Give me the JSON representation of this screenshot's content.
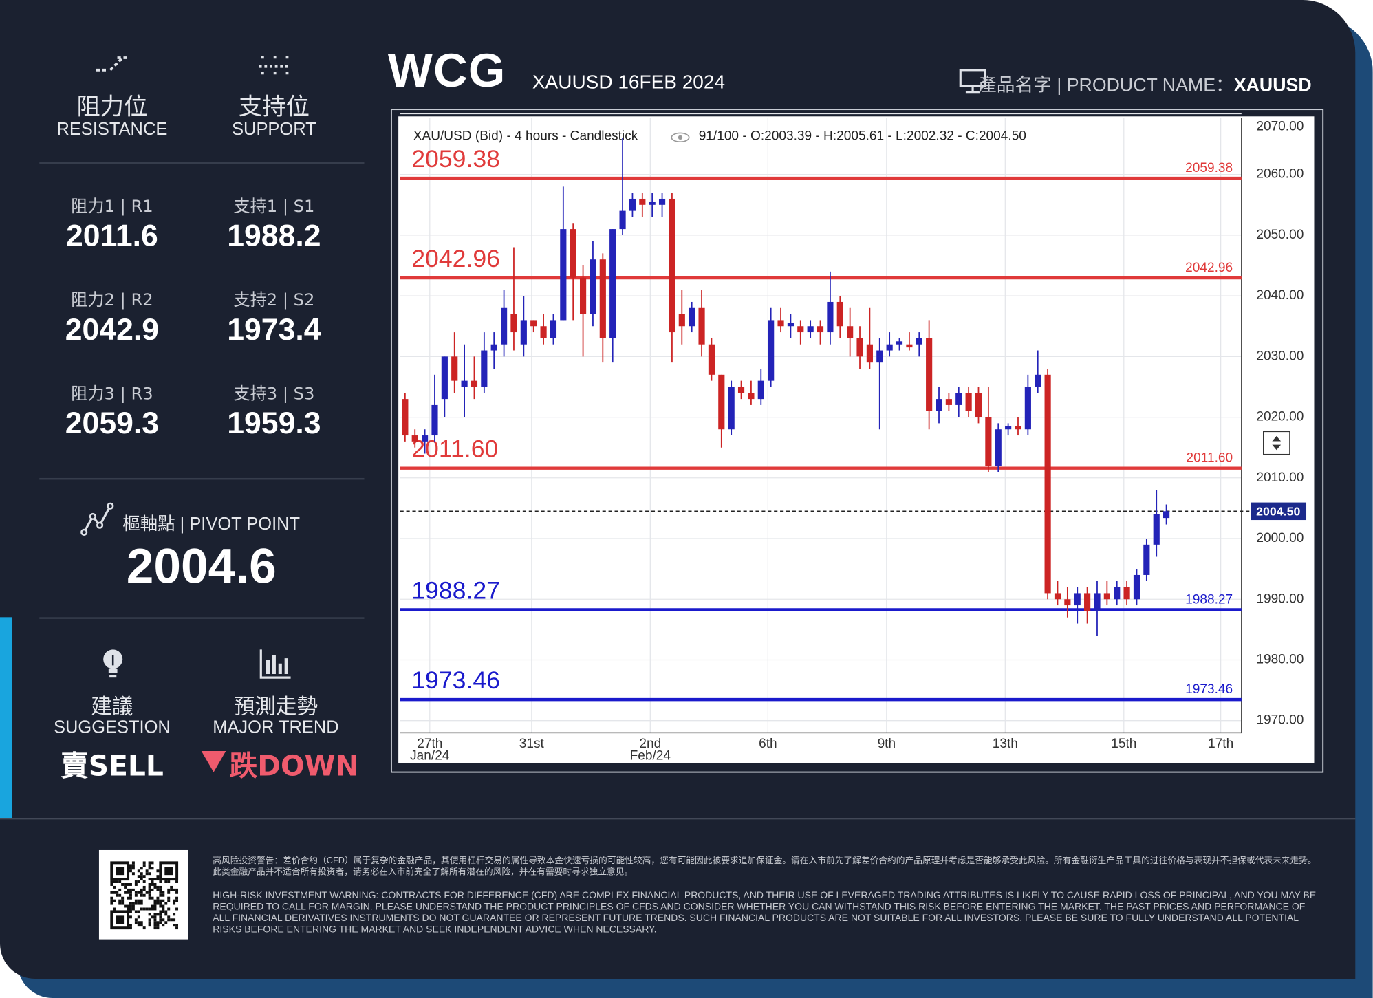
{
  "header": {
    "logo": "WCG",
    "product_date": "XAUUSD 16FEB 2024",
    "product_label": "產品名字 | PRODUCT NAME：",
    "product": "XAUUSD"
  },
  "resistance": {
    "title": "阻力位",
    "subtitle": "RESISTANCE",
    "levels": [
      {
        "label": "阻力1 | R1",
        "value": 2011.6
      },
      {
        "label": "阻力2 | R2",
        "value": 2042.9
      },
      {
        "label": "阻力3 | R3",
        "value": 2059.3
      }
    ]
  },
  "support": {
    "title": "支持位",
    "subtitle": "SUPPORT",
    "levels": [
      {
        "label": "支持1 | S1",
        "value": 1988.2
      },
      {
        "label": "支持2 | S2",
        "value": 1973.4
      },
      {
        "label": "支持3 | S3",
        "value": 1959.3
      }
    ]
  },
  "pivot": {
    "label": "樞軸點 | PIVOT POINT",
    "value": 2004.6
  },
  "suggestion": {
    "title": "建議",
    "subtitle": "SUGGESTION",
    "value": "賣SELL"
  },
  "trend": {
    "title": "預測走勢",
    "subtitle": "MAJOR TREND",
    "value": "跌DOWN"
  },
  "footer": {
    "disclaimer_zh": "高风险投资警告：差价合约（CFD）属于复杂的金融产品，其使用杠杆交易的属性导致本金快速亏损的可能性较高，您有可能因此被要求追加保证金。请在入市前先了解差价合约的产品原理并考虑是否能够承受此风险。所有金融衍生产品工具的过往价格与表现并不担保或代表未来走势。此类金融产品并不适合所有投资者，请务必在入市前完全了解所有潜在的风险，并在有需要时寻求独立意见。",
    "disclaimer_en": "HIGH-RISK INVESTMENT WARNING: CONTRACTS FOR DIFFERENCE (CFD) ARE COMPLEX FINANCIAL PRODUCTS, AND THEIR USE OF LEVERAGED TRADING ATTRIBUTES IS LIKELY TO CAUSE RAPID LOSS OF PRINCIPAL, AND YOU MAY BE REQUIRED TO CALL FOR MARGIN. PLEASE UNDERSTAND THE PRODUCT PRINCIPLES OF CFDS AND CONSIDER WHETHER YOU CAN WITHSTAND THIS RISK BEFORE ENTERING THE MARKET. THE PAST PRICES AND PERFORMANCE OF ALL FINANCIAL DERIVATIVES INSTRUMENTS DO NOT GUARANTEE OR REPRESENT FUTURE TRENDS. SUCH FINANCIAL PRODUCTS ARE NOT SUITABLE FOR ALL INVESTORS. PLEASE BE SURE TO FULLY UNDERSTAND ALL POTENTIAL RISKS BEFORE ENTERING THE MARKET AND SEEK INDEPENDENT ADVICE WHEN NECESSARY."
  },
  "chart_data": {
    "type": "candlestick",
    "title": "XAU/USD (Bid) - 4 hours - Candlestick",
    "subtitle": "91/100 - O:2003.39 - H:2005.61 - L:2002.32 - C:2004.50",
    "x": [
      0,
      1,
      2,
      3,
      4,
      5,
      6,
      7,
      8,
      9,
      10,
      11,
      12,
      13,
      14,
      15,
      16,
      17,
      18,
      19,
      20,
      21,
      22,
      23,
      24,
      25,
      26,
      27,
      28,
      29,
      30,
      31,
      32,
      33,
      34,
      35,
      36,
      37,
      38,
      39,
      40,
      41,
      42,
      43,
      44,
      45,
      46,
      47,
      48,
      49,
      50,
      51,
      52,
      53,
      54,
      55,
      56,
      57,
      58,
      59,
      60,
      61,
      62,
      63,
      64,
      65,
      66,
      67,
      68,
      69,
      70,
      71,
      72,
      73,
      74,
      75,
      76,
      77
    ],
    "open": [
      2023,
      2017,
      2016,
      2017,
      2023,
      2030,
      2025,
      2026,
      2025,
      2031,
      2032,
      2037,
      2032,
      2036,
      2035,
      2033,
      2036,
      2051,
      2043,
      2037,
      2046,
      2033,
      2051,
      2054,
      2056,
      2055,
      2055,
      2056,
      2037,
      2035,
      2038,
      2032,
      2027,
      2018,
      2025,
      2024,
      2023,
      2026,
      2036,
      2035,
      2035,
      2034,
      2035,
      2034,
      2039,
      2035,
      2033,
      2032,
      2029,
      2031,
      2032,
      2032,
      2032,
      2033,
      2021,
      2023,
      2022,
      2024,
      2024,
      2020,
      2012,
      2018,
      2018.5,
      2018,
      2025,
      2027,
      1991,
      1990,
      1989,
      1991,
      1988,
      1991,
      1990,
      1992,
      1990,
      1994,
      1999,
      2003.39
    ],
    "high": [
      2024,
      2018,
      2018,
      2027,
      2030,
      2034,
      2032,
      2030,
      2034,
      2034,
      2041,
      2048,
      2040,
      2036,
      2037,
      2037,
      2058,
      2052,
      2045,
      2049,
      2047,
      2051,
      2066,
      2057,
      2057,
      2057,
      2057,
      2057,
      2041,
      2039,
      2041,
      2033,
      2027,
      2026,
      2026,
      2026,
      2028,
      2038,
      2038,
      2037,
      2036,
      2036,
      2036,
      2044,
      2040,
      2038,
      2035,
      2038,
      2033,
      2034,
      2033,
      2034,
      2034,
      2036,
      2025,
      2024,
      2025,
      2025,
      2025,
      2025,
      2019,
      2019,
      2020,
      2027,
      2031,
      2028,
      1993,
      1992,
      1992,
      1992,
      1993,
      1993,
      1993,
      1993,
      1995,
      2000,
      2008,
      2005.61
    ],
    "low": [
      2016,
      2015,
      2014,
      2016,
      2020,
      2024,
      2020,
      2023,
      2024,
      2028,
      2030,
      2031,
      2030,
      2034,
      2032,
      2032,
      2036,
      2036,
      2030,
      2035,
      2029,
      2029,
      2050,
      2053,
      2053,
      2053,
      2053,
      2029,
      2032,
      2034,
      2030,
      2026,
      2015,
      2017,
      2023,
      2022,
      2022,
      2025,
      2034,
      2033,
      2032,
      2033,
      2032,
      2032,
      2033,
      2030,
      2028,
      2028,
      2018,
      2030,
      2031,
      2031,
      2030,
      2018,
      2019,
      2021,
      2020,
      2020,
      2019,
      2011,
      2011,
      2017,
      2017,
      2017,
      2024,
      1990,
      1989,
      1987,
      1986,
      1986,
      1984,
      1989,
      1989,
      1989,
      1989,
      1993,
      1997,
      2002.32
    ],
    "close": [
      2017,
      2016,
      2017,
      2022,
      2030,
      2026,
      2026,
      2025,
      2031,
      2032,
      2038,
      2034,
      2036,
      2035,
      2033,
      2036,
      2051,
      2043,
      2037,
      2046,
      2033,
      2051,
      2054,
      2056,
      2055,
      2055.5,
      2056,
      2034,
      2035,
      2038,
      2032,
      2027,
      2018,
      2025,
      2024,
      2023,
      2026,
      2036,
      2035,
      2035.5,
      2034,
      2035,
      2034,
      2039,
      2035,
      2033,
      2030,
      2029,
      2031,
      2032,
      2032.5,
      2031.5,
      2033,
      2021,
      2023,
      2022,
      2024,
      2021,
      2020,
      2012,
      2018,
      2018.5,
      2018,
      2025,
      2027,
      1991,
      1990,
      1989,
      1991,
      1988,
      1991,
      1990,
      1992,
      1990,
      1994,
      1999,
      2004,
      2004.5
    ],
    "up_color": "#2323b8",
    "down_color": "#cc2424",
    "xlim": [
      -0.5,
      84.6
    ],
    "xticks": [
      {
        "value": 2.5,
        "label": "27th",
        "sublabel": "Jan/24"
      },
      {
        "value": 12.8,
        "label": "31st"
      },
      {
        "value": 24.8,
        "label": "2nd",
        "sublabel": "Feb/24"
      },
      {
        "value": 36.7,
        "label": "6th"
      },
      {
        "value": 48.7,
        "label": "9th"
      },
      {
        "value": 60.7,
        "label": "13th"
      },
      {
        "value": 72.7,
        "label": "15th"
      },
      {
        "value": 82.5,
        "label": "17th"
      }
    ],
    "ylim": [
      1968,
      2070
    ],
    "yticks": [
      {
        "value": 1970,
        "label": "1970.00"
      },
      {
        "value": 1980,
        "label": "1980.00"
      },
      {
        "value": 1990,
        "label": "1990.00"
      },
      {
        "value": 2000,
        "label": "2000.00"
      },
      {
        "value": 2010,
        "label": "2010.00"
      },
      {
        "value": 2020,
        "label": "2020.00"
      },
      {
        "value": 2030,
        "label": "2030.00"
      },
      {
        "value": 2040,
        "label": "2040.00"
      },
      {
        "value": 2050,
        "label": "2050.00"
      },
      {
        "value": 2060,
        "label": "2060.00"
      },
      {
        "value": 2070,
        "label": "2070.00"
      }
    ],
    "grid": true,
    "levels": {
      "values": [
        2059.38,
        2042.96,
        2011.6,
        1988.27,
        1973.46
      ],
      "value_labels": [
        "2059.38",
        "2042.96",
        "2011.60",
        "1988.27",
        "1973.46"
      ],
      "colors": [
        "#e03a3a",
        "#e03a3a",
        "#e03a3a",
        "#1a1acc",
        "#1a1acc"
      ]
    },
    "last": {
      "value": 2004.5,
      "label": "2004.50"
    }
  }
}
